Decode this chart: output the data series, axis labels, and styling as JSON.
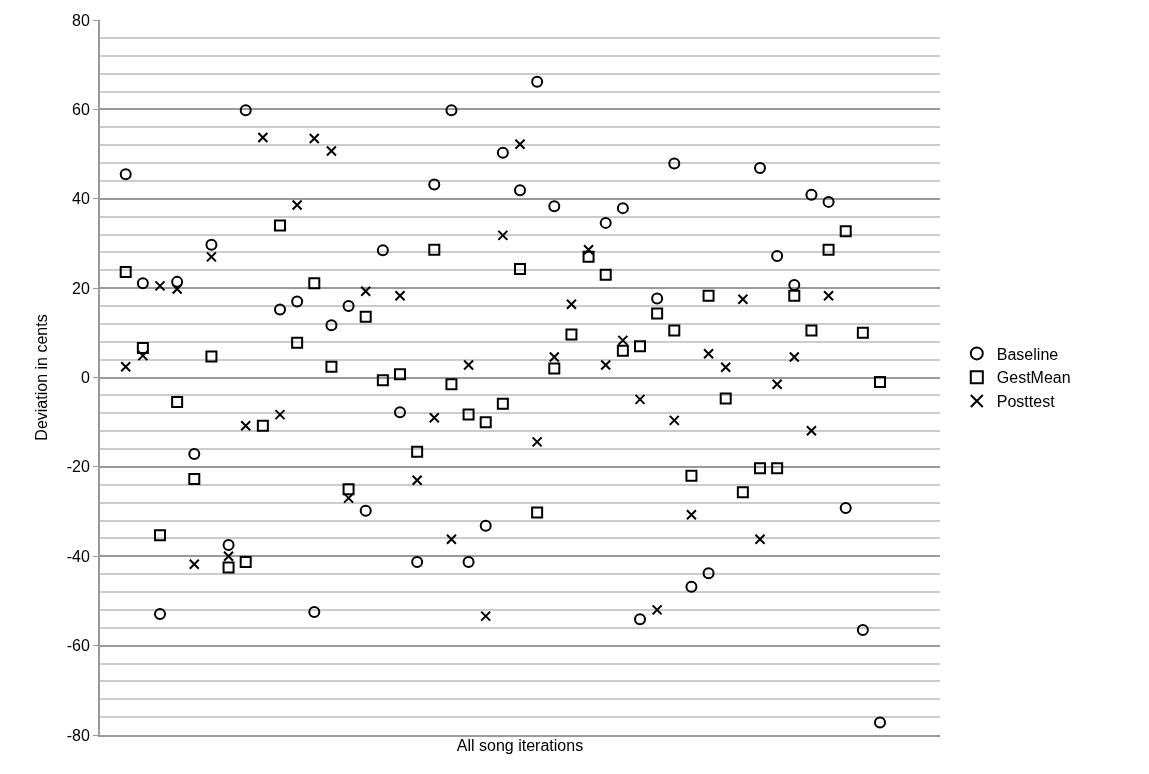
{
  "chart_data": {
    "type": "scatter",
    "xlabel": "All song iterations",
    "ylabel": "Deviation in cents",
    "categories": [
      null,
      null,
      null,
      null,
      null,
      null,
      null,
      null,
      null,
      null,
      null,
      null,
      null,
      null,
      null,
      null,
      null,
      null,
      null,
      null,
      null,
      null,
      null,
      null,
      null,
      null,
      null,
      null,
      null,
      null,
      null,
      null,
      null,
      null,
      null,
      null,
      null,
      null,
      null,
      null,
      null,
      null,
      null,
      null,
      null,
      null,
      null,
      null,
      null
    ],
    "ylim": [
      -80,
      80
    ],
    "yticks": [
      -80,
      -60,
      -40,
      -20,
      0,
      20,
      40,
      60,
      80
    ],
    "tick_labels": "y",
    "grid": "y",
    "legend": "right",
    "series": [
      {
        "name": "Baseline",
        "color": "#000000",
        "marker": "circle",
        "values": [
          null,
          45.5,
          21.1,
          -52.9,
          21.4,
          -17.1,
          29.7,
          -37.5,
          59.8,
          null,
          15.2,
          17.0,
          -52.5,
          11.7,
          16.0,
          -29.8,
          28.5,
          -7.8,
          -41.3,
          43.2,
          59.8,
          -41.3,
          -33.2,
          50.3,
          41.9,
          66.2,
          38.3,
          null,
          null,
          34.6,
          37.9,
          -54.1,
          17.7,
          47.9,
          -46.8,
          -43.8,
          null,
          null,
          46.9,
          27.2,
          20.7,
          40.9,
          39.3,
          -29.2,
          -56.5,
          -77.2,
          null,
          null,
          null
        ]
      },
      {
        "name": "GestMean",
        "color": "#000000",
        "marker": "square",
        "values": [
          null,
          23.6,
          6.6,
          -35.3,
          -5.5,
          -22.7,
          4.7,
          -42.5,
          -41.3,
          -10.8,
          34.0,
          7.8,
          21.1,
          2.4,
          -25.0,
          13.6,
          -0.6,
          0.7,
          -16.6,
          28.6,
          -1.5,
          -8.3,
          -10.0,
          -5.9,
          24.3,
          -30.2,
          2.0,
          9.6,
          27.0,
          23.0,
          6.0,
          7.0,
          14.3,
          10.5,
          -22.0,
          18.3,
          -4.7,
          -25.7,
          -20.3,
          -20.3,
          18.3,
          10.5,
          28.6,
          32.7,
          10.0,
          -1.0,
          null,
          null,
          null
        ]
      },
      {
        "name": "Posttest",
        "color": "#000000",
        "marker": "cross",
        "values": [
          null,
          2.4,
          4.9,
          20.5,
          19.8,
          -41.8,
          27.0,
          -40.0,
          -10.8,
          53.7,
          -8.3,
          38.6,
          53.5,
          50.7,
          -27.0,
          19.3,
          null,
          18.3,
          -23.0,
          -9.0,
          -36.2,
          2.8,
          -53.4,
          31.8,
          52.2,
          -14.4,
          4.6,
          16.4,
          28.6,
          2.8,
          8.3,
          -4.9,
          -52.0,
          -9.6,
          -30.7,
          5.3,
          2.3,
          17.5,
          -36.2,
          -1.5,
          4.6,
          -11.9,
          18.3,
          null,
          null,
          null,
          null,
          null,
          null
        ]
      }
    ]
  }
}
